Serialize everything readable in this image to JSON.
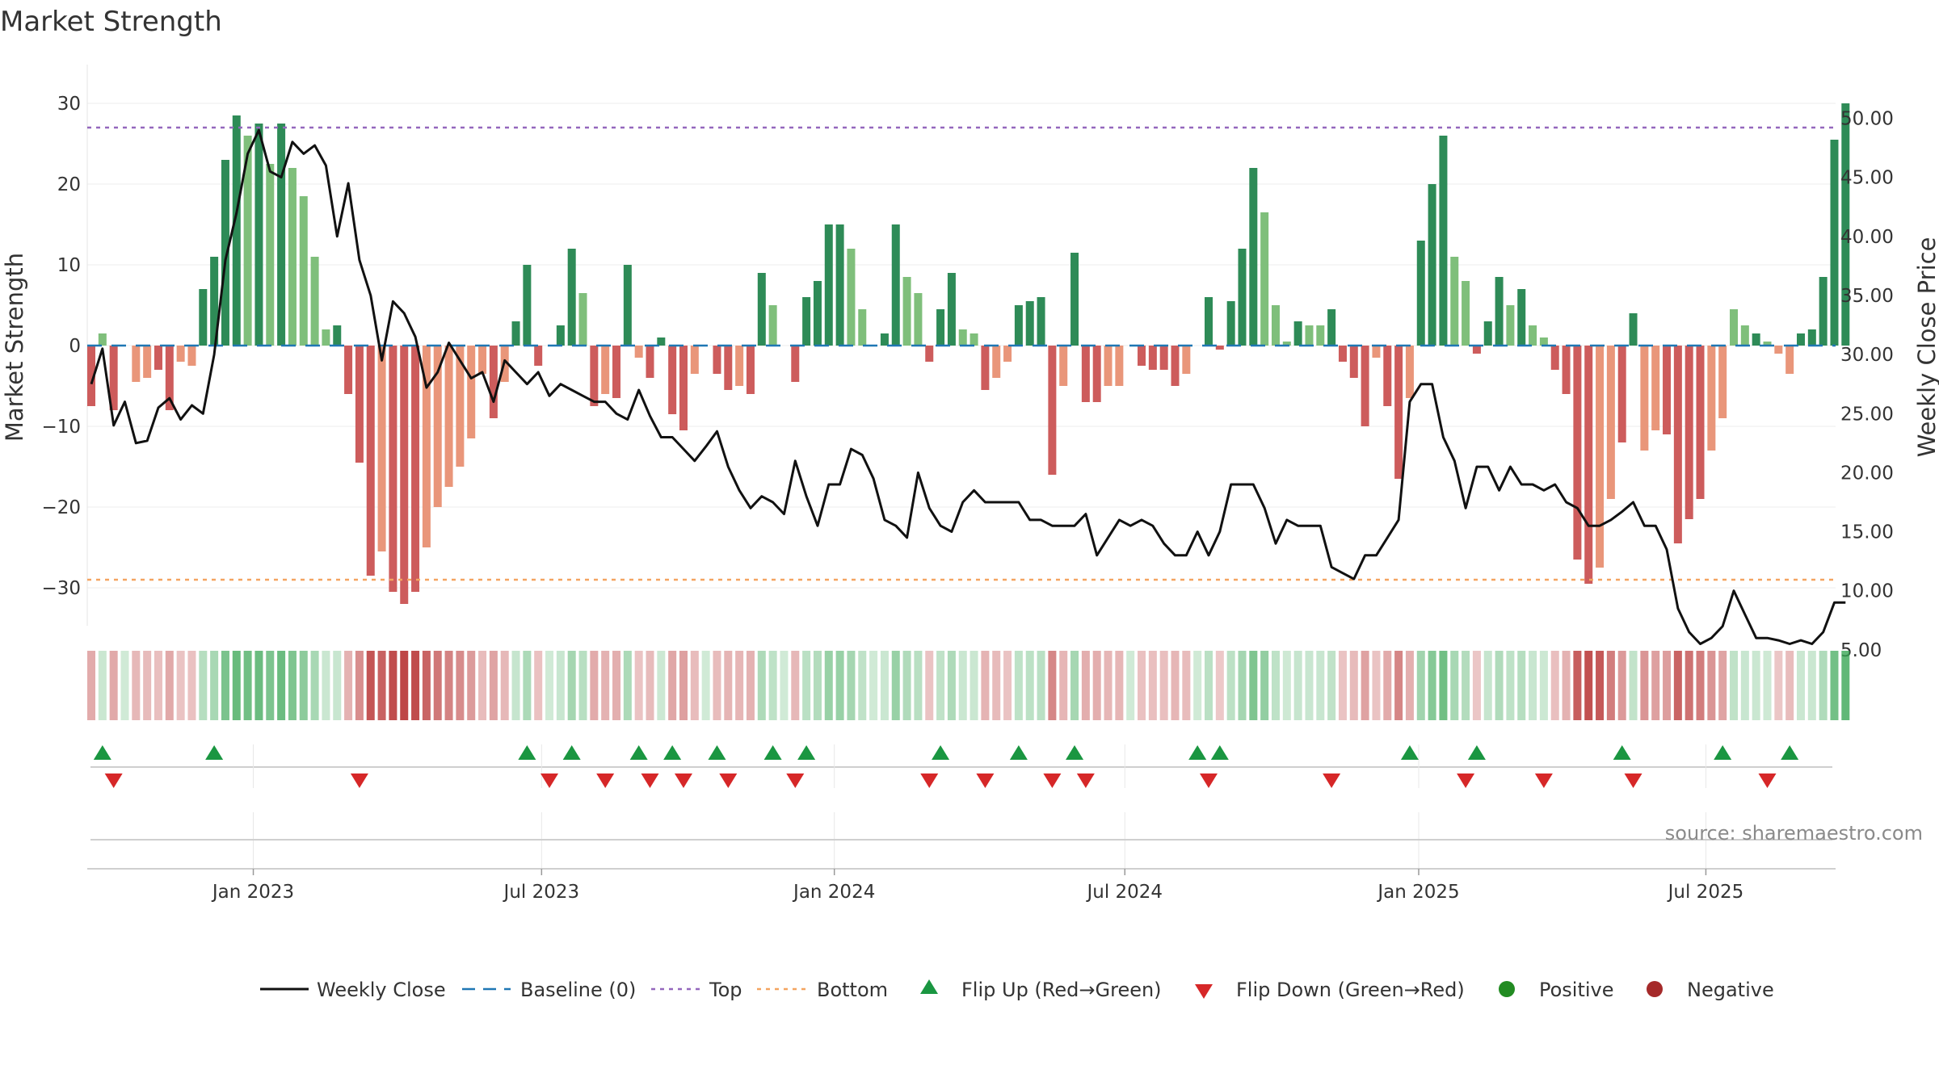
{
  "chart_data": {
    "type": "bar",
    "title": "Market Strength",
    "ylabel_left": "Market Strength",
    "ylabel_right": "Weekly Close Price",
    "source": "source: sharemaestro.com",
    "left_axis": {
      "range": [
        -35,
        35
      ],
      "ticks": [
        30,
        20,
        10,
        0,
        -10,
        -20,
        -30
      ],
      "tick_labels": [
        "30",
        "20",
        "10",
        "0",
        "−10",
        "−20",
        "−30"
      ]
    },
    "right_axis": {
      "range": [
        1.9,
        52.9
      ],
      "ticks": [
        50,
        45,
        40,
        35,
        30,
        25,
        20,
        15,
        10,
        5
      ],
      "tick_labels": [
        "50.00",
        "45.00",
        "40.00",
        "35.00",
        "30.00",
        "25.00",
        "20.00",
        "15.00",
        "10.00",
        "5.00"
      ]
    },
    "x_axis": {
      "tick_labels": [
        "Jan 2023",
        "Jul 2023",
        "Jan 2024",
        "Jul 2024",
        "Jan 2025",
        "Jul 2025"
      ],
      "tick_week_index": [
        14.5,
        40.3,
        66.5,
        92.5,
        118.8,
        144.5
      ]
    },
    "top_line": 27,
    "bottom_line": -29,
    "colors": {
      "strong_green": "#2e8b57",
      "light_green": "#7fbf7b",
      "strong_red": "#cd5c5c",
      "light_red": "#e9967a",
      "close_line": "#111111",
      "baseline": "#1f77b4",
      "top": "#9467bd",
      "bottom": "#f4a460",
      "flip_up": "#1a9641",
      "flip_down": "#d62728",
      "positive": "#228b22",
      "negative": "#a52a2a"
    },
    "strength": [
      -7.5,
      1.5,
      -8,
      0,
      -4.5,
      -4,
      -3,
      -8,
      -2,
      -2.5,
      7,
      11,
      23,
      28.5,
      26,
      27.5,
      22.5,
      27.5,
      22,
      18.5,
      11,
      2,
      2.5,
      -6,
      -14.5,
      -28.5,
      -25.5,
      -30.5,
      -32,
      -30.5,
      -25,
      -20,
      -17.5,
      -15,
      -11.5,
      -3.5,
      -9,
      -4.5,
      3,
      10,
      -2.5,
      0,
      2.5,
      12,
      6.5,
      -7.5,
      -6,
      -6.5,
      10,
      -1.5,
      -4,
      1,
      -8.5,
      -10.5,
      -3.5,
      0,
      -3.5,
      -5.5,
      -5,
      -6,
      9,
      5,
      0,
      -4.5,
      6,
      8,
      15,
      15,
      12,
      4.5,
      0,
      1.5,
      15,
      8.5,
      6.5,
      -2,
      4.5,
      9,
      2,
      1.5,
      -5.5,
      -4,
      -2,
      5,
      5.5,
      6,
      -16,
      -5,
      11.5,
      -7,
      -7,
      -5,
      -5,
      0,
      -2.5,
      -3,
      -3,
      -5,
      -3.5,
      0,
      6,
      -0.5,
      5.5,
      12,
      22,
      16.5,
      5,
      0.5,
      3,
      2.5,
      2.5,
      4.5,
      -2,
      -4,
      -10,
      -1.5,
      -7.5,
      -16.5,
      -6.5,
      13,
      20,
      26,
      11,
      8,
      -1,
      3,
      8.5,
      5,
      7,
      2.5,
      1,
      -3,
      -6,
      -26.5,
      -29.5,
      -27.5,
      -19,
      -12,
      4,
      -13,
      -10.5,
      -11,
      -24.5,
      -21.5,
      -19,
      -13,
      -9,
      4.5,
      2.5,
      1.5,
      0.5,
      -1,
      -3.5,
      1.5,
      2,
      8.5,
      25.5,
      30
    ],
    "shade": [
      1,
      0,
      1,
      0,
      0,
      0,
      1,
      1,
      0,
      0,
      1,
      1,
      1,
      1,
      0,
      1,
      0,
      1,
      0,
      0,
      0,
      0,
      1,
      1,
      1,
      1,
      0,
      1,
      1,
      1,
      0,
      0,
      0,
      0,
      0,
      0,
      1,
      0,
      1,
      1,
      1,
      0,
      1,
      1,
      0,
      1,
      0,
      1,
      1,
      0,
      1,
      1,
      1,
      1,
      0,
      0,
      1,
      1,
      0,
      1,
      1,
      0,
      0,
      1,
      1,
      1,
      1,
      1,
      0,
      0,
      0,
      1,
      1,
      0,
      0,
      1,
      1,
      1,
      0,
      0,
      1,
      0,
      0,
      1,
      1,
      1,
      1,
      0,
      1,
      1,
      1,
      0,
      0,
      0,
      1,
      1,
      1,
      1,
      0,
      0,
      1,
      1,
      1,
      1,
      1,
      0,
      0,
      0,
      1,
      0,
      0,
      1,
      1,
      1,
      1,
      0,
      1,
      1,
      0,
      1,
      1,
      1,
      0,
      0,
      1,
      1,
      1,
      0,
      1,
      0,
      0,
      1,
      1,
      1,
      1,
      0,
      0,
      1,
      1,
      0,
      0,
      1,
      1,
      1,
      1,
      0,
      0,
      0,
      0,
      1,
      0,
      0,
      0,
      1,
      1,
      1,
      1,
      1
    ],
    "weekly_close": [
      27.5,
      30.5,
      24,
      26,
      22.5,
      22.7,
      25.5,
      26.3,
      24.5,
      25.7,
      25,
      30,
      38,
      42,
      47,
      49,
      45.5,
      45,
      48,
      47,
      47.7,
      46,
      40,
      44.5,
      38,
      35,
      29.5,
      34.5,
      33.5,
      31.5,
      27.2,
      28.5,
      31,
      29.5,
      28,
      28.5,
      26,
      29.5,
      28.5,
      27.5,
      28.5,
      26.5,
      27.5,
      27,
      26.5,
      26,
      26,
      25,
      24.5,
      27,
      24.8,
      23,
      23,
      22,
      21,
      22.2,
      23.5,
      20.5,
      18.5,
      17,
      18,
      17.5,
      16.5,
      21,
      18,
      15.5,
      19,
      19,
      22,
      21.5,
      19.5,
      16,
      15.5,
      14.5,
      20,
      17,
      15.5,
      15,
      17.5,
      18.5,
      17.5,
      17.5,
      17.5,
      17.5,
      16,
      16,
      15.5,
      15.5,
      15.5,
      16.5,
      13,
      14.5,
      16,
      15.5,
      16,
      15.5,
      14,
      13,
      13,
      15,
      13,
      15,
      19,
      19,
      19,
      17,
      14,
      16,
      15.5,
      15.5,
      15.5,
      12,
      11.5,
      11,
      13,
      13,
      14.5,
      16,
      26,
      27.5,
      27.5,
      23,
      21,
      17,
      20.5,
      20.5,
      18.5,
      20.5,
      19,
      19,
      18.5,
      19,
      17.5,
      17,
      15.5,
      15.5,
      16,
      16.7,
      17.5,
      15.5,
      15.5,
      13.5,
      8.5,
      6.5,
      5.5,
      6,
      7,
      10,
      8,
      6,
      6,
      5.8,
      5.5,
      5.8,
      5.5,
      6.5,
      9,
      9
    ],
    "flips_up": [
      1,
      11,
      39,
      43,
      49,
      52,
      56,
      61,
      64,
      76,
      83,
      88,
      99,
      101,
      118,
      124,
      137,
      146,
      152
    ],
    "flips_down": [
      2,
      24,
      41,
      46,
      50,
      53,
      57,
      63,
      75,
      80,
      86,
      89,
      100,
      111,
      123,
      130,
      138,
      150
    ],
    "legend": [
      {
        "label": "Weekly Close",
        "type": "line"
      },
      {
        "label": "Baseline (0)",
        "type": "dash"
      },
      {
        "label": "Top",
        "type": "dot-purple"
      },
      {
        "label": "Bottom",
        "type": "dot-orange"
      },
      {
        "label": "Flip Up (Red→Green)",
        "type": "tri-up"
      },
      {
        "label": "Flip Down (Green→Red)",
        "type": "tri-down"
      },
      {
        "label": "Positive",
        "type": "circle-pos"
      },
      {
        "label": "Negative",
        "type": "circle-neg"
      }
    ]
  }
}
